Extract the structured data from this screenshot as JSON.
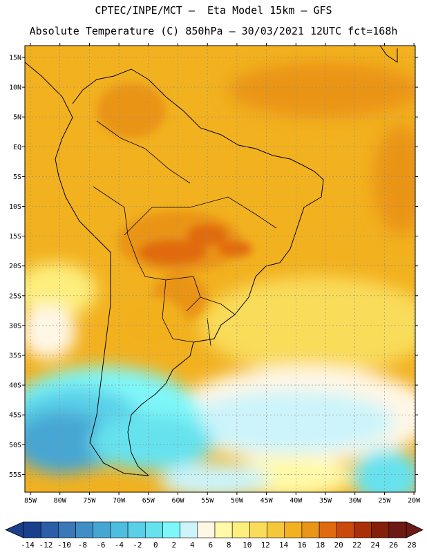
{
  "header": {
    "title_line_1": "CPTEC/INPE/MCT –  Eta Model 15km – GFS",
    "title_line_2": "Absolute Temperature (C) 850hPa – 30/03/2021 12UTC fct=168h"
  },
  "axes": {
    "lat_labels": [
      "15N",
      "10N",
      "5N",
      "EQ",
      "5S",
      "10S",
      "15S",
      "20S",
      "25S",
      "30S",
      "35S",
      "40S",
      "45S",
      "50S",
      "55S"
    ],
    "lon_labels": [
      "85W",
      "80W",
      "75W",
      "70W",
      "65W",
      "60W",
      "55W",
      "50W",
      "45W",
      "40W",
      "35W",
      "30W",
      "25W",
      "20W"
    ]
  },
  "colorbar": {
    "labels": [
      "-14",
      "-12",
      "-10",
      "-8",
      "-6",
      "-4",
      "-2",
      "0",
      "2",
      "4",
      "6",
      "8",
      "10",
      "12",
      "14",
      "16",
      "18",
      "20",
      "22",
      "24",
      "26",
      "28"
    ],
    "colors": [
      "#1a3f8c",
      "#2a5ea8",
      "#3a78b8",
      "#3f8fc6",
      "#46a6d3",
      "#4fbde0",
      "#5ad0e8",
      "#66e2ee",
      "#7ff7f9",
      "#ccf4fa",
      "#fff7e6",
      "#fff9a8",
      "#fdee7e",
      "#f9dc5a",
      "#f5c83c",
      "#f2b11f",
      "#ea9418",
      "#e06a10",
      "#c94a0c",
      "#aa300a",
      "#84200a",
      "#6b1a14"
    ]
  },
  "map": {
    "region": "South America",
    "lat_range": [
      -58,
      17
    ],
    "lon_range": [
      -86,
      -19
    ]
  }
}
